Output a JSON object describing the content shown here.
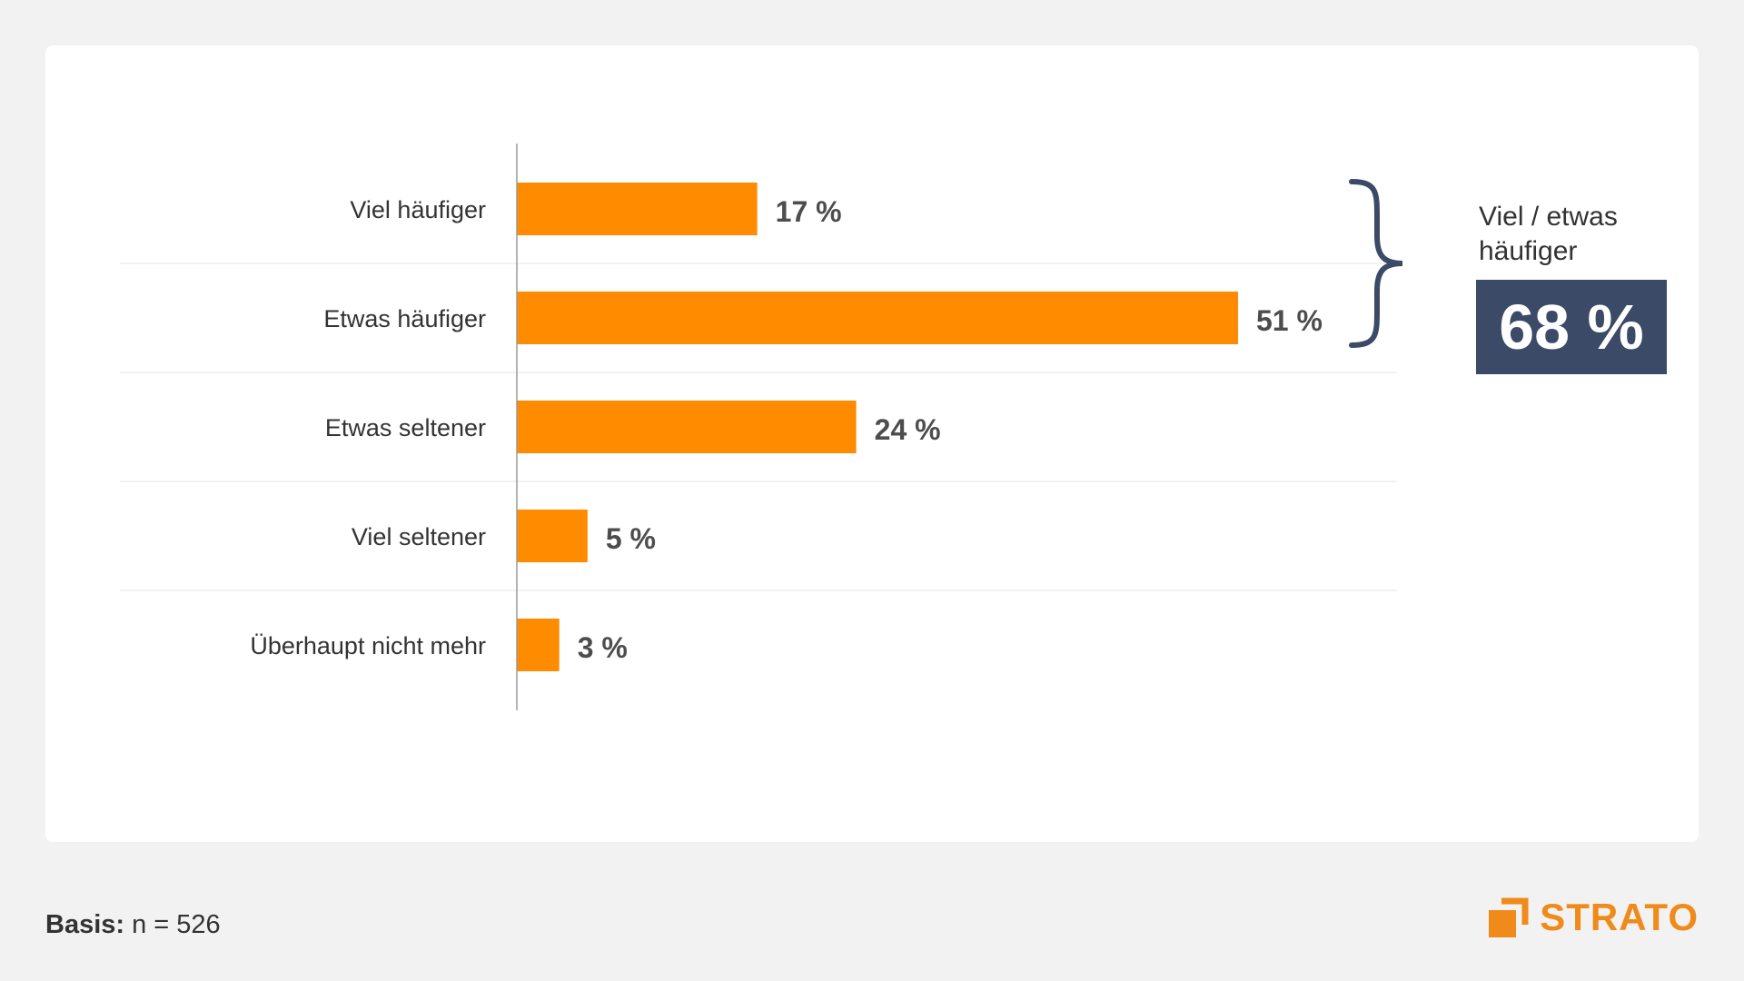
{
  "chart_data": {
    "type": "bar",
    "orientation": "horizontal",
    "categories": [
      "Viel häufiger",
      "Etwas häufiger",
      "Etwas seltener",
      "Viel seltener",
      "Überhaupt nicht mehr"
    ],
    "values": [
      17,
      51,
      24,
      5,
      3
    ],
    "value_labels": [
      "17 %",
      "51 %",
      "24 %",
      "5 %",
      "3 %"
    ],
    "title": "",
    "xlabel": "",
    "ylabel": "",
    "xlim": [
      0,
      51
    ],
    "grid": true,
    "bar_color": "#ff8c00",
    "annotation": {
      "label": "Viel / etwas häufiger",
      "value": "68 %",
      "spans_categories": [
        "Viel häufiger",
        "Etwas häufiger"
      ],
      "box_color": "#3b4a66"
    }
  },
  "footer": {
    "basis_label": "Basis:",
    "basis_value": "n = 526"
  },
  "brand": {
    "name": "STRATO",
    "color": "#f08a1a",
    "icon": "strato-logo-icon"
  }
}
